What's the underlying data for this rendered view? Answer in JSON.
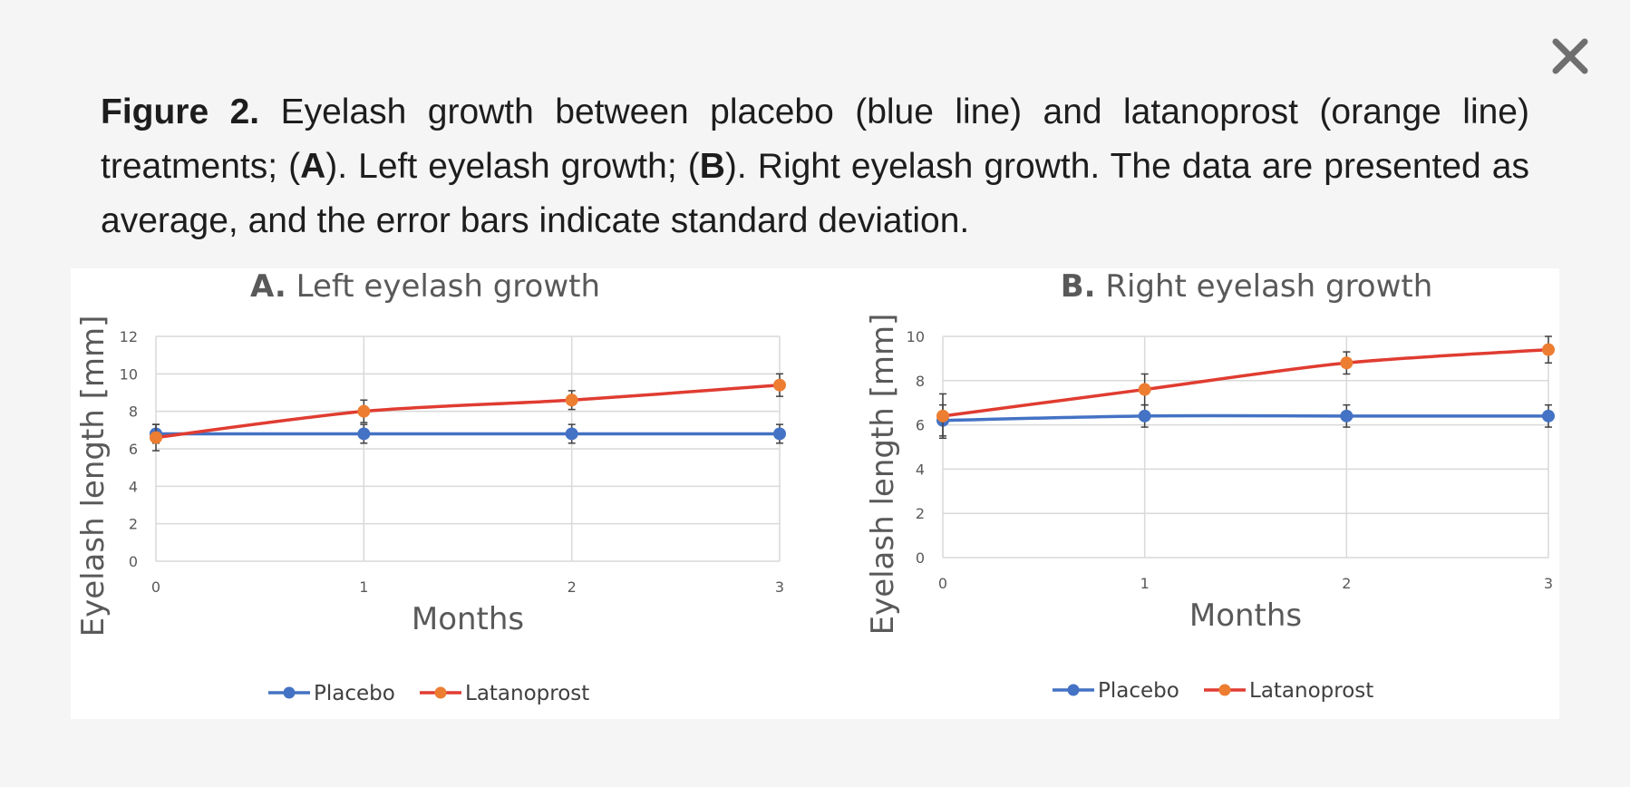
{
  "close": {
    "icon": "close-icon"
  },
  "caption": {
    "lead": "Figure 2.",
    "t1": " Eyelash growth between placebo (blue line) and latanoprost (orange line) treatments; (",
    "a": "A",
    "t2": "). Left eyelash growth; (",
    "b": "B",
    "t3": "). Right eyelash growth. The data are presented as average, and the error bars indicate standard deviation."
  },
  "colors": {
    "placebo": "#4472c4",
    "latanoprost_line": "#e03c31",
    "latanoprost_marker": "#ed7d31",
    "grid": "#d9d9d9",
    "text": "#595959"
  },
  "chart_data": [
    {
      "type": "line",
      "title_prefix": "A.",
      "title": "Left eyelash growth",
      "xlabel": "Months",
      "ylabel": "Eyelash length [mm]",
      "x": [
        0,
        1,
        2,
        3
      ],
      "xlim": [
        0,
        3
      ],
      "ylim": [
        0,
        12
      ],
      "yticks": [
        0,
        2,
        4,
        6,
        8,
        10,
        12
      ],
      "grid": true,
      "legend": "bottom",
      "series": [
        {
          "name": "Placebo",
          "values": [
            6.8,
            6.8,
            6.8,
            6.8
          ],
          "err": [
            0.5,
            0.5,
            0.5,
            0.5
          ]
        },
        {
          "name": "Latanoprost",
          "values": [
            6.6,
            8.0,
            8.6,
            9.4
          ],
          "err": [
            0.7,
            0.6,
            0.5,
            0.6
          ]
        }
      ]
    },
    {
      "type": "line",
      "title_prefix": "B.",
      "title": "Right eyelash growth",
      "xlabel": "Months",
      "ylabel": "Eyelash length [mm]",
      "x": [
        0,
        1,
        2,
        3
      ],
      "xlim": [
        0,
        3
      ],
      "ylim": [
        0,
        10
      ],
      "yticks": [
        0,
        2,
        4,
        6,
        8,
        10
      ],
      "grid": true,
      "legend": "bottom",
      "series": [
        {
          "name": "Placebo",
          "values": [
            6.2,
            6.4,
            6.4,
            6.4
          ],
          "err": [
            0.7,
            0.5,
            0.5,
            0.5
          ]
        },
        {
          "name": "Latanoprost",
          "values": [
            6.4,
            7.6,
            8.8,
            9.4
          ],
          "err": [
            1.0,
            0.7,
            0.5,
            0.6
          ]
        }
      ]
    }
  ]
}
